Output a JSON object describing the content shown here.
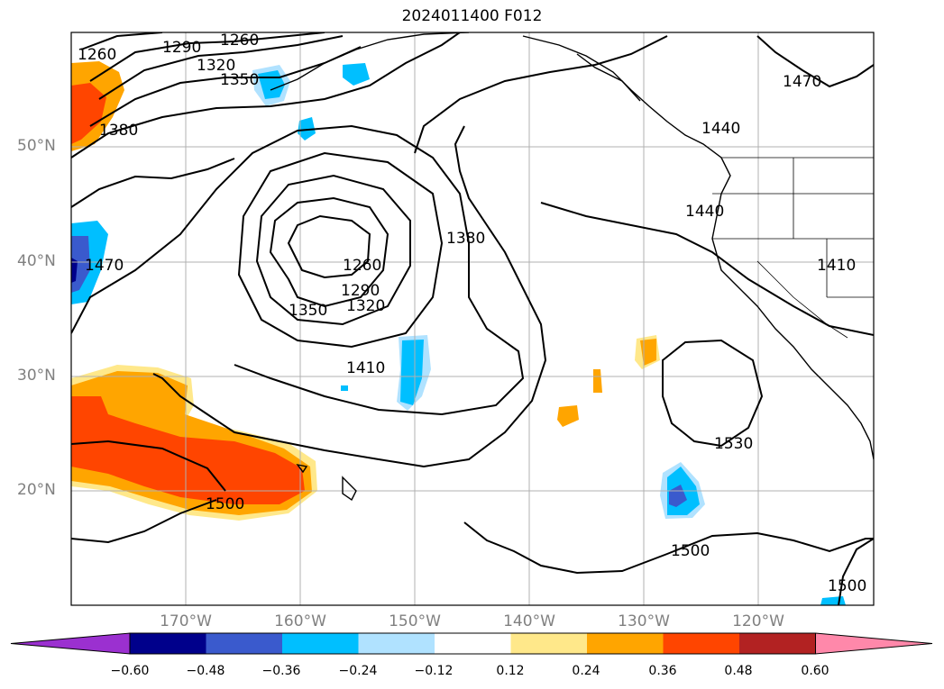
{
  "title": "2024011400 F012",
  "lat_labels": [
    "50°N",
    "40°N",
    "30°N",
    "20°N"
  ],
  "lon_labels": [
    "170°W",
    "160°W",
    "150°W",
    "140°W",
    "130°W",
    "120°W"
  ],
  "contour_labels": [
    "1260",
    "1290",
    "1260",
    "1320",
    "1350",
    "1380",
    "1470",
    "1440",
    "1440",
    "1410",
    "1470",
    "1380",
    "1260",
    "1290",
    "1320",
    "1350",
    "1410",
    "1500",
    "1530",
    "1500",
    "1500"
  ],
  "colorbar": {
    "ticks": [
      "−0.60",
      "−0.48",
      "−0.36",
      "−0.24",
      "−0.12",
      "0.12",
      "0.24",
      "0.36",
      "0.48",
      "0.60"
    ],
    "colors": [
      "#9b30d0",
      "#00008b",
      "#3a5acd",
      "#00bfff",
      "#b0e2ff",
      "#ffffff",
      "#ffe88a",
      "#ffa500",
      "#ff4500",
      "#b22222",
      "#ff88aa"
    ]
  }
}
